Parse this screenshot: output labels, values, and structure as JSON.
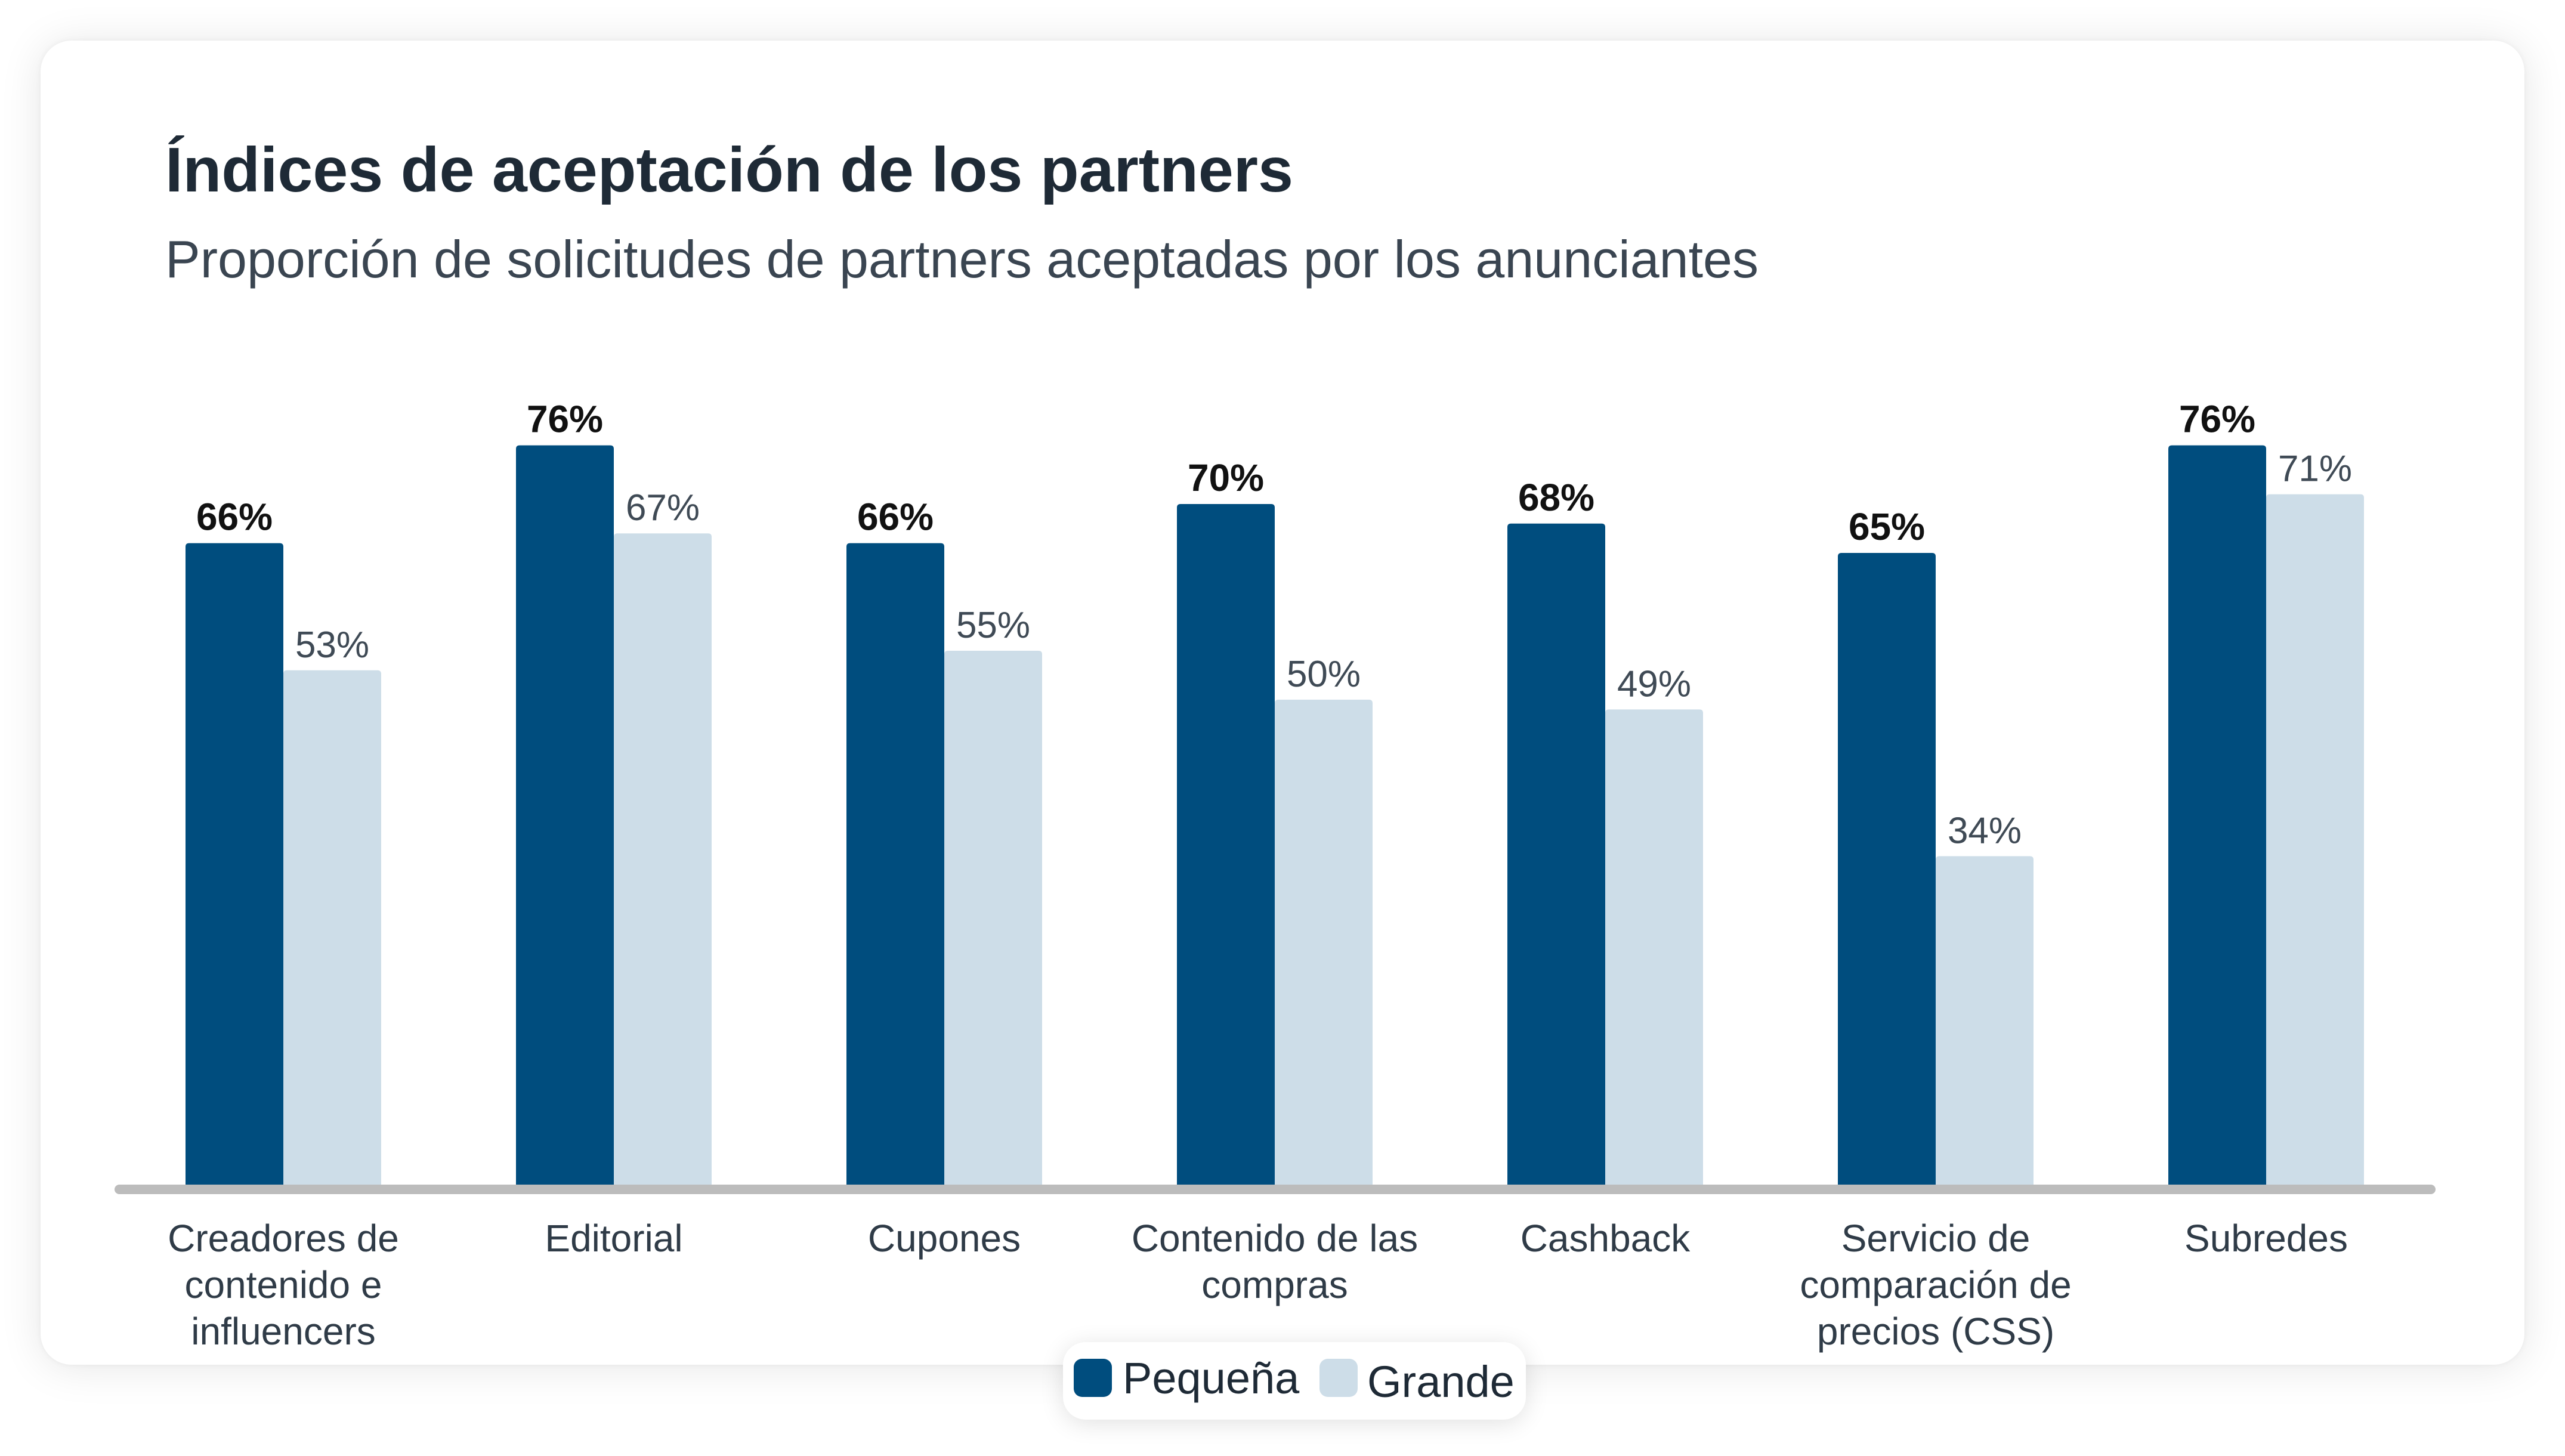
{
  "header": {
    "title": "Índices de aceptación de los partners",
    "subtitle": "Proporción de solicitudes de partners aceptadas por los anunciantes"
  },
  "colors": {
    "pequena": "#004d7e",
    "grande": "#cddde8",
    "axis": "#bcbcbc",
    "label_text": "#2f3b47",
    "value_text_bold": "#111111",
    "value_text_light": "#3f4a55"
  },
  "legend": {
    "position": "bottom-center",
    "items": [
      {
        "label": "Pequeña",
        "color": "#004d7e"
      },
      {
        "label": "Grande",
        "color": "#cddde8"
      }
    ]
  },
  "chart_data": {
    "type": "bar",
    "title": "Índices de aceptación de los partners",
    "subtitle": "Proporción de solicitudes de partners aceptadas por los anunciantes",
    "xlabel": "",
    "ylabel": "",
    "ylim": [
      0,
      80
    ],
    "grid": false,
    "value_suffix": "%",
    "categories": [
      [
        "Creadores de",
        "contenido e",
        "influencers"
      ],
      [
        "Editorial"
      ],
      [
        "Cupones"
      ],
      [
        "Contenido de las",
        "compras"
      ],
      [
        "Cashback"
      ],
      [
        "Servicio de",
        "comparación de",
        "precios (CSS)"
      ],
      [
        "Subredes"
      ]
    ],
    "series": [
      {
        "name": "Pequeña",
        "color": "#004d7e",
        "values": [
          66,
          76,
          66,
          70,
          68,
          65,
          76
        ]
      },
      {
        "name": "Grande",
        "color": "#cddde8",
        "values": [
          53,
          67,
          55,
          50,
          49,
          34,
          71
        ]
      }
    ]
  }
}
